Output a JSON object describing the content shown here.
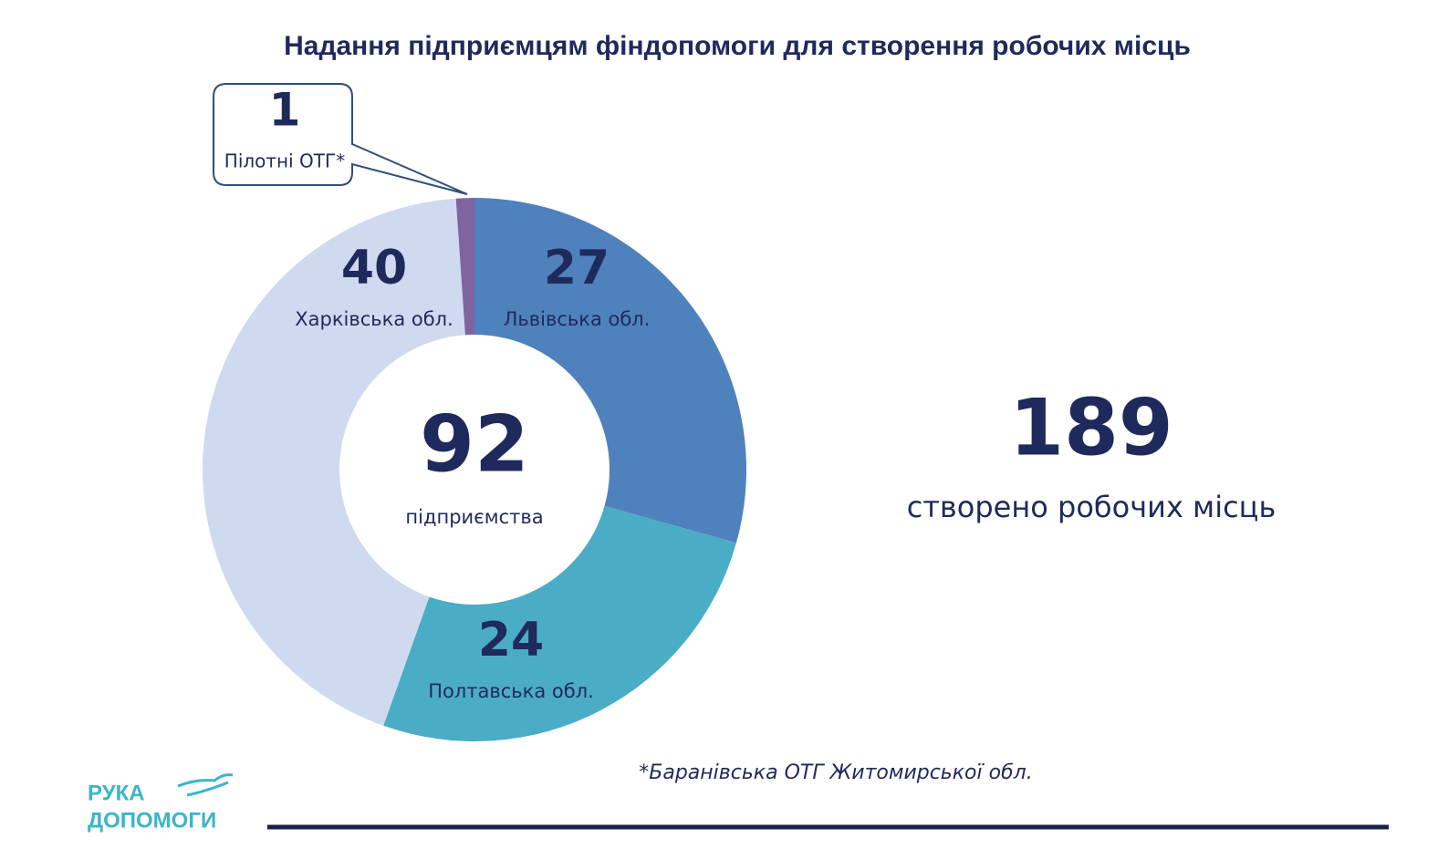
{
  "chart_data": {
    "type": "donut",
    "title": "Надання підприємцям фіндопомоги для створення робочих місць",
    "categories": [
      "Львівська обл.",
      "Полтавська обл.",
      "Харківська обл.",
      "Пілотні ОТГ*"
    ],
    "values": [
      27,
      24,
      40,
      1
    ],
    "colors": [
      "#4f81bd",
      "#4bacc6",
      "#cfdaf0",
      "#8064a2"
    ],
    "center_value": 92,
    "center_label": "підприємства"
  },
  "summary": {
    "value": 189,
    "label": "створено робочих місць"
  },
  "footnote": "*Баранівська ОТГ Житомирської обл.",
  "logo": {
    "line1": "РУКА",
    "line2": "ДОПОМОГИ"
  }
}
